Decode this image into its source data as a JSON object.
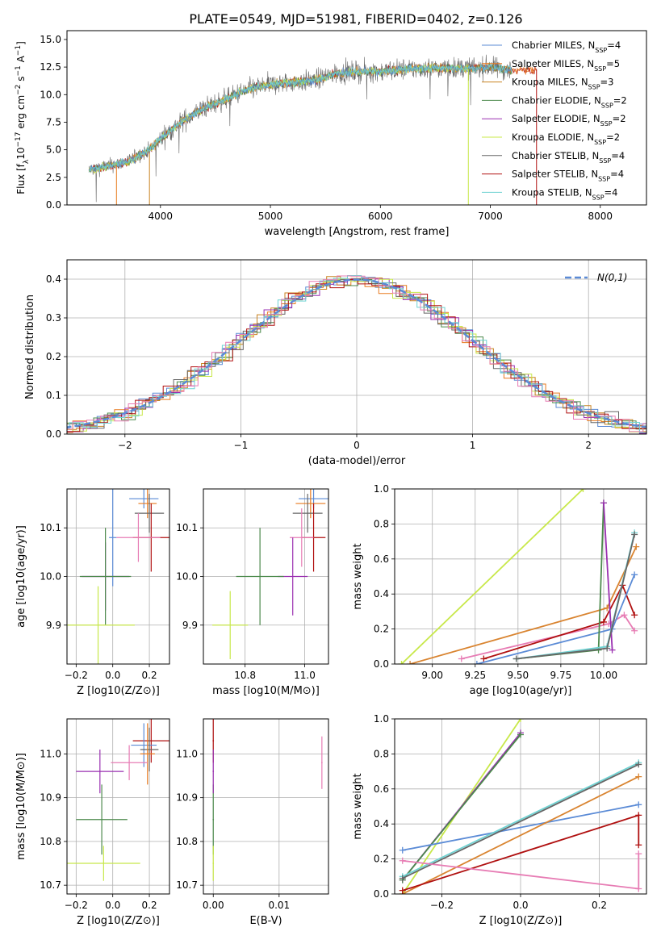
{
  "figure": {
    "title": "PLATE=0549, MJD=51981, FIBERID=0402, z=0.126"
  },
  "colors": {
    "chabrier_miles": "#5b8bd6",
    "salpeter_miles": "#e87a1e",
    "kroupa_miles": "#c98220",
    "chabrier_elodie": "#4c8a4c",
    "salpeter_elodie": "#9a2fb0",
    "kroupa_elodie": "#c8e84a",
    "chabrier_stelib": "#666666",
    "salpeter_stelib": "#b01010",
    "kroupa_stelib": "#6fd3d3",
    "gaussian": "#5b8bd6",
    "pink": "#e77cb4",
    "orange": "#d98430"
  },
  "chart_data": [
    {
      "type": "line",
      "id": "spectrum",
      "title": "PLATE=0549, MJD=51981, FIBERID=0402, z=0.126",
      "xlabel": "wavelength [Angstrom, rest frame]",
      "ylabel": "Flux [f",
      "ylabel_parts": [
        "Flux [f",
        "λ",
        "10",
        "−17",
        " erg cm",
        "−2",
        " s",
        "−1",
        " A",
        "−1",
        "]"
      ],
      "xlim": [
        3150,
        8420
      ],
      "ylim": [
        0,
        15.8
      ],
      "xticks": [
        "4000",
        "5000",
        "6000",
        "7000",
        "8000"
      ],
      "yticks": [
        "0.0",
        "2.5",
        "5.0",
        "7.5",
        "10.0",
        "12.5",
        "15.0"
      ],
      "continuum": [
        [
          3350,
          3.2
        ],
        [
          3500,
          3.5
        ],
        [
          3700,
          3.9
        ],
        [
          3900,
          5.0
        ],
        [
          4000,
          6.0
        ],
        [
          4200,
          7.6
        ],
        [
          4400,
          8.8
        ],
        [
          4600,
          9.6
        ],
        [
          4800,
          10.5
        ],
        [
          5000,
          10.9
        ],
        [
          5200,
          11.1
        ],
        [
          5400,
          11.3
        ],
        [
          5600,
          11.9
        ],
        [
          5800,
          12.1
        ],
        [
          6000,
          12.1
        ],
        [
          6200,
          12.3
        ],
        [
          6400,
          12.4
        ],
        [
          6600,
          12.4
        ],
        [
          6800,
          12.4
        ],
        [
          7000,
          12.5
        ],
        [
          7200,
          12.2
        ]
      ],
      "legend": [
        {
          "label": "Chabrier MILES, N",
          "sub": "SSP",
          "n": "=4"
        },
        {
          "label": "Salpeter MILES, N",
          "sub": "SSP",
          "n": "=5"
        },
        {
          "label": "Kroupa MILES, N",
          "sub": "SSP",
          "n": "=3"
        },
        {
          "label": "Chabrier ELODIE, N",
          "sub": "SSP",
          "n": "=2"
        },
        {
          "label": "Salpeter ELODIE, N",
          "sub": "SSP",
          "n": "=2"
        },
        {
          "label": "Kroupa ELODIE, N",
          "sub": "SSP",
          "n": "=2"
        },
        {
          "label": "Chabrier STELIB, N",
          "sub": "SSP",
          "n": "=4"
        },
        {
          "label": "Salpeter STELIB, N",
          "sub": "SSP",
          "n": "=4"
        },
        {
          "label": "Kroupa STELIB, N",
          "sub": "SSP",
          "n": "=4"
        }
      ]
    },
    {
      "type": "histogram",
      "id": "residuals",
      "xlabel": "(data-model)/error",
      "ylabel": "Normed distribution",
      "xlim": [
        -2.5,
        2.5
      ],
      "ylim": [
        0,
        0.45
      ],
      "xticks": [
        "−2",
        "−1",
        "0",
        "1",
        "2"
      ],
      "yticks": [
        "0.0",
        "0.1",
        "0.2",
        "0.3",
        "0.4"
      ],
      "legend": "N(0,1)",
      "grid": true
    },
    {
      "type": "scatter",
      "id": "age_vs_Z",
      "xlabel": "Z [log10(Z/Z⊙)]",
      "ylabel": "age  [log10(age/yr)]",
      "xlim": [
        -0.25,
        0.31
      ],
      "ylim": [
        9.82,
        10.18
      ],
      "xticks": [
        "−0.2",
        "0.0",
        "0.2"
      ],
      "yticks": [
        "9.9",
        "10.0",
        "10.1"
      ],
      "points": [
        {
          "x": 0.17,
          "y": 10.16,
          "xe": 0.08,
          "ye": 0.02,
          "c": "chabrier_miles"
        },
        {
          "x": 0.19,
          "y": 10.15,
          "xe": 0.05,
          "ye": 0.03,
          "c": "salpeter_miles"
        },
        {
          "x": 0.2,
          "y": 10.13,
          "xe": 0.08,
          "ye": 0.04,
          "c": "chabrier_stelib"
        },
        {
          "x": 0.21,
          "y": 10.08,
          "xe": 0.1,
          "ye": 0.07,
          "c": "salpeter_stelib"
        },
        {
          "x": 0.14,
          "y": 10.08,
          "xe": 0.12,
          "ye": 0.05,
          "c": "pink"
        },
        {
          "x": 0.0,
          "y": 10.08,
          "xe": 0.02,
          "ye": 0.1,
          "c": "chabrier_miles"
        },
        {
          "x": -0.04,
          "y": 10.0,
          "xe": 0.13,
          "ye": 0.07,
          "c": "salpeter_elodie"
        },
        {
          "x": -0.04,
          "y": 10.0,
          "xe": 0.14,
          "ye": 0.1,
          "c": "chabrier_elodie"
        },
        {
          "x": -0.08,
          "y": 9.9,
          "xe": 0.2,
          "ye": 0.08,
          "c": "kroupa_elodie"
        }
      ]
    },
    {
      "type": "scatter",
      "id": "age_vs_mass",
      "xlabel": "mass [log10(M/M⊙)]",
      "ylabel": "",
      "xlim": [
        10.66,
        11.08
      ],
      "ylim": [
        9.82,
        10.18
      ],
      "xticks": [
        "10.8",
        "11.0"
      ],
      "yticks": [
        "9.9",
        "10.0",
        "10.1"
      ],
      "points": [
        {
          "x": 11.03,
          "y": 10.16,
          "xe": 0.05,
          "ye": 0.02,
          "c": "chabrier_miles"
        },
        {
          "x": 11.02,
          "y": 10.15,
          "xe": 0.05,
          "ye": 0.03,
          "c": "salpeter_miles"
        },
        {
          "x": 11.01,
          "y": 10.13,
          "xe": 0.05,
          "ye": 0.04,
          "c": "chabrier_stelib"
        },
        {
          "x": 11.03,
          "y": 10.08,
          "xe": 0.04,
          "ye": 0.07,
          "c": "salpeter_stelib"
        },
        {
          "x": 10.99,
          "y": 10.08,
          "xe": 0.04,
          "ye": 0.06,
          "c": "pink"
        },
        {
          "x": 10.96,
          "y": 10.0,
          "xe": 0.05,
          "ye": 0.08,
          "c": "salpeter_elodie"
        },
        {
          "x": 10.85,
          "y": 10.0,
          "xe": 0.08,
          "ye": 0.1,
          "c": "chabrier_elodie"
        },
        {
          "x": 10.75,
          "y": 9.9,
          "xe": 0.06,
          "ye": 0.07,
          "c": "kroupa_elodie"
        }
      ]
    },
    {
      "type": "line",
      "id": "massweight_vs_age",
      "xlabel": "age  [log10(age/yr)]",
      "ylabel": "mass weight",
      "xlim": [
        8.78,
        10.25
      ],
      "ylim": [
        0,
        1.0
      ],
      "xticks": [
        "9.00",
        "9.25",
        "9.50",
        "9.75",
        "10.00"
      ],
      "yticks": [
        "0.0",
        "0.2",
        "0.4",
        "0.6",
        "0.8",
        "1.0"
      ],
      "series": [
        {
          "c": "kroupa_elodie",
          "x": [
            8.82,
            9.88
          ],
          "y": [
            0.0,
            1.0
          ]
        },
        {
          "c": "orange",
          "x": [
            8.87,
            10.02,
            10.19
          ],
          "y": [
            0.0,
            0.32,
            0.67
          ]
        },
        {
          "c": "pink",
          "x": [
            9.17,
            10.03,
            10.12,
            10.18
          ],
          "y": [
            0.03,
            0.23,
            0.28,
            0.19
          ]
        },
        {
          "c": "salpeter_stelib",
          "x": [
            9.3,
            10.0,
            10.11,
            10.18
          ],
          "y": [
            0.03,
            0.24,
            0.45,
            0.28
          ]
        },
        {
          "c": "chabrier_miles",
          "x": [
            9.26,
            10.05,
            10.18
          ],
          "y": [
            0.0,
            0.2,
            0.51
          ]
        },
        {
          "c": "chabrier_elodie",
          "x": [
            9.49,
            9.97,
            10.0
          ],
          "y": [
            0.03,
            0.08,
            0.92
          ]
        },
        {
          "c": "salpeter_elodie",
          "x": [
            10.0,
            10.05
          ],
          "y": [
            0.92,
            0.08
          ]
        },
        {
          "c": "kroupa_stelib",
          "x": [
            9.49,
            10.02,
            10.18
          ],
          "y": [
            0.03,
            0.1,
            0.75
          ]
        },
        {
          "c": "chabrier_stelib",
          "x": [
            9.49,
            10.02,
            10.18
          ],
          "y": [
            0.03,
            0.09,
            0.74
          ]
        }
      ]
    },
    {
      "type": "scatter",
      "id": "mass_vs_Z",
      "xlabel": "Z [log10(Z/Z⊙)]",
      "ylabel": "mass [log10(M/M⊙)]",
      "xlim": [
        -0.25,
        0.31
      ],
      "ylim": [
        10.68,
        11.08
      ],
      "xticks": [
        "−0.2",
        "0.0",
        "0.2"
      ],
      "yticks": [
        "10.7",
        "10.8",
        "10.9",
        "11.0"
      ],
      "points": [
        {
          "x": 0.21,
          "y": 11.03,
          "xe": 0.1,
          "ye": 0.05,
          "c": "salpeter_stelib"
        },
        {
          "x": 0.17,
          "y": 11.02,
          "xe": 0.07,
          "ye": 0.05,
          "c": "chabrier_miles"
        },
        {
          "x": 0.2,
          "y": 11.01,
          "xe": 0.05,
          "ye": 0.05,
          "c": "chabrier_stelib"
        },
        {
          "x": 0.19,
          "y": 11.0,
          "xe": 0.04,
          "ye": 0.07,
          "c": "salpeter_miles"
        },
        {
          "x": 0.09,
          "y": 10.98,
          "xe": 0.1,
          "ye": 0.04,
          "c": "pink"
        },
        {
          "x": -0.07,
          "y": 10.96,
          "xe": 0.13,
          "ye": 0.05,
          "c": "salpeter_elodie"
        },
        {
          "x": -0.06,
          "y": 10.85,
          "xe": 0.14,
          "ye": 0.08,
          "c": "chabrier_elodie"
        },
        {
          "x": -0.05,
          "y": 10.75,
          "xe": 0.2,
          "ye": 0.04,
          "c": "kroupa_elodie"
        }
      ]
    },
    {
      "type": "scatter",
      "id": "mass_vs_ebv",
      "xlabel": "E(B-V)",
      "ylabel": "",
      "xlim": [
        -0.0015,
        0.0175
      ],
      "ylim": [
        10.68,
        11.08
      ],
      "xticks": [
        "0.00",
        "0.01"
      ],
      "yticks": [
        "10.7",
        "10.8",
        "10.9",
        "11.0"
      ],
      "points": [
        {
          "x": 0.0,
          "y": 11.03,
          "xe": 0.0001,
          "ye": 0.05,
          "c": "salpeter_stelib"
        },
        {
          "x": 0.0,
          "y": 10.85,
          "xe": 0.0001,
          "ye": 0.08,
          "c": "chabrier_elodie"
        },
        {
          "x": 0.0,
          "y": 10.75,
          "xe": 0.0001,
          "ye": 0.04,
          "c": "kroupa_elodie"
        },
        {
          "x": 0.0,
          "y": 10.96,
          "xe": 0.0001,
          "ye": 0.05,
          "c": "salpeter_elodie"
        },
        {
          "x": 0.0165,
          "y": 10.98,
          "xe": 0.0001,
          "ye": 0.06,
          "c": "pink"
        }
      ]
    },
    {
      "type": "line",
      "id": "massweight_vs_Z",
      "xlabel": "Z [log10(Z/Z⊙)]",
      "ylabel": "mass weight",
      "xlim": [
        -0.32,
        0.32
      ],
      "ylim": [
        0,
        1.0
      ],
      "xticks": [
        "−0.2",
        "0.0",
        "0.2"
      ],
      "yticks": [
        "0.0",
        "0.2",
        "0.4",
        "0.6",
        "0.8",
        "1.0"
      ],
      "series": [
        {
          "c": "kroupa_elodie",
          "x": [
            -0.3,
            0.0
          ],
          "y": [
            0.0,
            1.0
          ]
        },
        {
          "c": "salpeter_elodie",
          "x": [
            -0.3,
            0.0
          ],
          "y": [
            0.08,
            0.92
          ]
        },
        {
          "c": "chabrier_elodie",
          "x": [
            -0.3,
            0.0
          ],
          "y": [
            0.08,
            0.91
          ]
        },
        {
          "c": "chabrier_miles",
          "x": [
            -0.3,
            0.3
          ],
          "y": [
            0.25,
            0.51
          ]
        },
        {
          "c": "orange",
          "x": [
            -0.3,
            0.3
          ],
          "y": [
            0.0,
            0.67
          ]
        },
        {
          "c": "salpeter_stelib",
          "x": [
            -0.3,
            0.3,
            0.3
          ],
          "y": [
            0.02,
            0.45,
            0.28
          ]
        },
        {
          "c": "kroupa_stelib",
          "x": [
            -0.3,
            0.3
          ],
          "y": [
            0.1,
            0.75
          ]
        },
        {
          "c": "chabrier_stelib",
          "x": [
            -0.3,
            0.3
          ],
          "y": [
            0.09,
            0.74
          ]
        },
        {
          "c": "pink",
          "x": [
            -0.3,
            0.3,
            0.3
          ],
          "y": [
            0.19,
            0.03,
            0.23
          ]
        }
      ]
    }
  ]
}
